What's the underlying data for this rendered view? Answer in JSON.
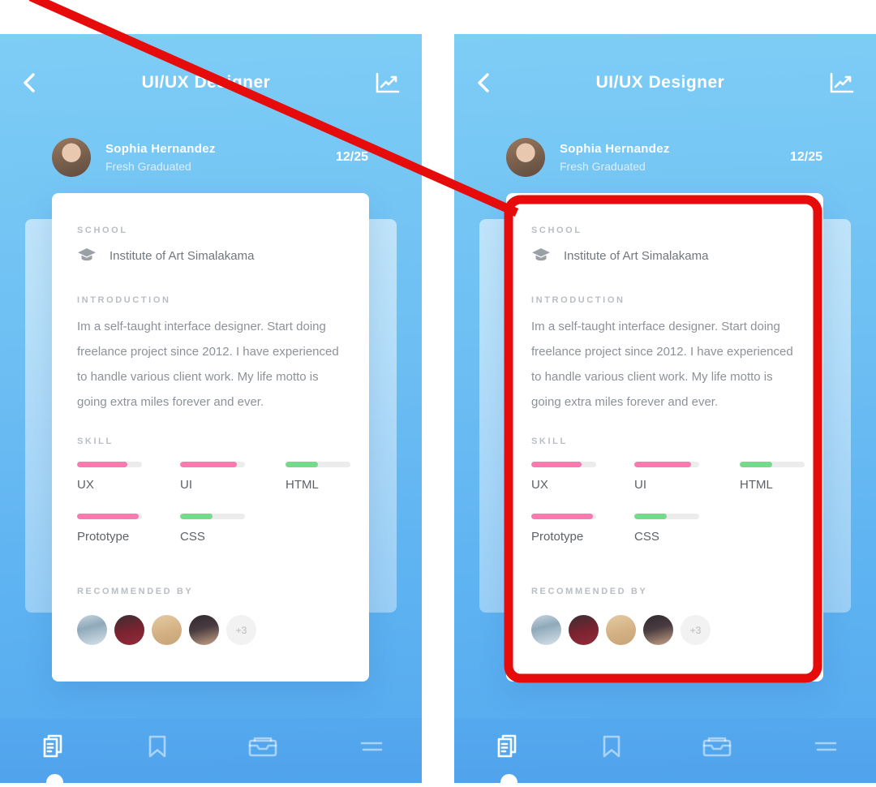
{
  "annotation": {
    "highlight_color": "#e60c0c"
  },
  "screen": {
    "header": {
      "back_icon": "chevron-left",
      "title": "UI/UX Designer",
      "stats_icon": "trending-line-chart"
    },
    "profile": {
      "name": "Sophia Hernandez",
      "subtitle": "Fresh Graduated",
      "counter": "12/25"
    },
    "card": {
      "school_label": "SCHOOL",
      "school_icon": "graduation-cap",
      "school_name": "Institute of Art Simalakama",
      "intro_label": "INTRODUCTION",
      "intro_text": "Im a self-taught interface designer. Start doing freelance project since 2012. I have experienced to handle various client work. My life motto is going extra miles forever and ever.",
      "skill_label": "SKILL",
      "skills": [
        {
          "label": "UX",
          "percent": 78,
          "color": "#f97bae"
        },
        {
          "label": "UI",
          "percent": 87,
          "color": "#f97bae"
        },
        {
          "label": "HTML",
          "percent": 50,
          "color": "#75da8c"
        },
        {
          "label": "Prototype",
          "percent": 95,
          "color": "#f97bae"
        },
        {
          "label": "CSS",
          "percent": 50,
          "color": "#75da8c"
        }
      ],
      "recommended_label": "RECOMMENDED BY",
      "recommender_count": 4,
      "more_count": "+3"
    },
    "nav": {
      "items": [
        {
          "icon": "documents-copy",
          "active": true
        },
        {
          "icon": "bookmark",
          "active": false
        },
        {
          "icon": "inbox",
          "active": false
        },
        {
          "icon": "menu",
          "active": false
        }
      ]
    }
  }
}
